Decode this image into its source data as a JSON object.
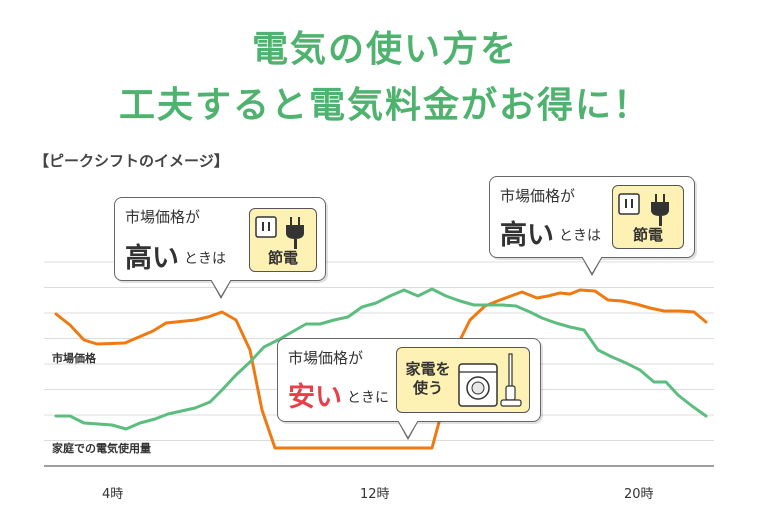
{
  "headline": {
    "line1": "電気の使い方を",
    "line2": "工夫すると電気料金がお得に！"
  },
  "caption": "【ピークシフトのイメージ】",
  "colors": {
    "headline": "#4fb36f",
    "market_price": "#ef7a12",
    "usage": "#5cbd7f",
    "highlight_red": "#e8404a",
    "box_yellow": "#fdf2b3"
  },
  "callouts": {
    "left": {
      "line1": "市場価格が",
      "big": "高い",
      "tail": "ときは",
      "label": "節電",
      "icon": "outlet-plug-icon"
    },
    "right": {
      "line1": "市場価格が",
      "big": "高い",
      "tail": "ときは",
      "label": "節電",
      "icon": "outlet-plug-icon"
    },
    "middle": {
      "line1": "市場価格が",
      "big": "安い",
      "tail": "ときに",
      "label_line1": "家電を",
      "label_line2": "使う",
      "icon": "washer-vacuum-icon"
    }
  },
  "chart_data": {
    "type": "line",
    "x_ticks": [
      "4時",
      "12時",
      "20時"
    ],
    "grid": true,
    "series": [
      {
        "name": "市場価格",
        "color": "#ef7a12",
        "points": [
          [
            56,
            314
          ],
          [
            70,
            325
          ],
          [
            84,
            340
          ],
          [
            97,
            344
          ],
          [
            125,
            343
          ],
          [
            153,
            331
          ],
          [
            166,
            323
          ],
          [
            195,
            320
          ],
          [
            208,
            317
          ],
          [
            222,
            312
          ],
          [
            236,
            320
          ],
          [
            250,
            350
          ],
          [
            262,
            410
          ],
          [
            275,
            448
          ],
          [
            432,
            448
          ],
          [
            445,
            400
          ],
          [
            460,
            340
          ],
          [
            470,
            320
          ],
          [
            485,
            306
          ],
          [
            500,
            300
          ],
          [
            522,
            292
          ],
          [
            537,
            298
          ],
          [
            548,
            296
          ],
          [
            560,
            293
          ],
          [
            570,
            294
          ],
          [
            580,
            290
          ],
          [
            595,
            291
          ],
          [
            608,
            300
          ],
          [
            622,
            301
          ],
          [
            636,
            304
          ],
          [
            650,
            308
          ],
          [
            664,
            311
          ],
          [
            680,
            311
          ],
          [
            694,
            312
          ],
          [
            706,
            322
          ]
        ]
      },
      {
        "name": "家庭での電気使用量",
        "color": "#5cbd7f",
        "points": [
          [
            56,
            416
          ],
          [
            70,
            416
          ],
          [
            84,
            423
          ],
          [
            98,
            424
          ],
          [
            112,
            425
          ],
          [
            126,
            429
          ],
          [
            140,
            423
          ],
          [
            155,
            419
          ],
          [
            168,
            414
          ],
          [
            195,
            408
          ],
          [
            210,
            402
          ],
          [
            222,
            390
          ],
          [
            236,
            375
          ],
          [
            250,
            362
          ],
          [
            264,
            347
          ],
          [
            278,
            340
          ],
          [
            292,
            332
          ],
          [
            306,
            324
          ],
          [
            320,
            324
          ],
          [
            334,
            320
          ],
          [
            348,
            317
          ],
          [
            362,
            307
          ],
          [
            376,
            303
          ],
          [
            390,
            296
          ],
          [
            404,
            290
          ],
          [
            418,
            296
          ],
          [
            432,
            289
          ],
          [
            446,
            296
          ],
          [
            460,
            301
          ],
          [
            474,
            305
          ],
          [
            488,
            305
          ],
          [
            502,
            305
          ],
          [
            516,
            306
          ],
          [
            530,
            312
          ],
          [
            542,
            318
          ],
          [
            556,
            323
          ],
          [
            570,
            327
          ],
          [
            584,
            330
          ],
          [
            598,
            350
          ],
          [
            612,
            357
          ],
          [
            626,
            363
          ],
          [
            640,
            370
          ],
          [
            654,
            382
          ],
          [
            666,
            382
          ],
          [
            678,
            395
          ],
          [
            692,
            406
          ],
          [
            706,
            416
          ]
        ]
      }
    ]
  }
}
